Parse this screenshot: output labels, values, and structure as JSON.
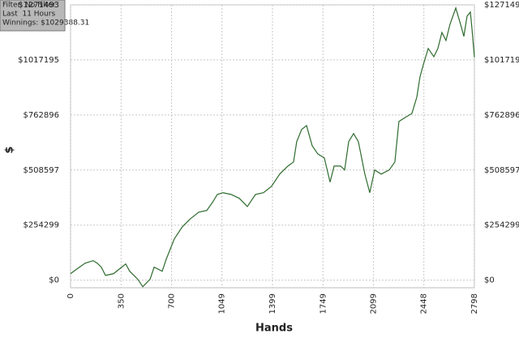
{
  "info": {
    "filter": "Filter: No Filter",
    "period": "Last  11 Hours",
    "winnings": "Winnings: $1029388.31"
  },
  "chart_data": {
    "type": "line",
    "x_label": "Hands",
    "y_label": "$",
    "xlim": [
      0,
      2798
    ],
    "xticks": [
      0,
      350,
      700,
      1049,
      1399,
      1749,
      2099,
      2448,
      2798
    ],
    "ylim": [
      -35000,
      1271493
    ],
    "yticks": [
      {
        "value": 0,
        "label": "$0"
      },
      {
        "value": 254299,
        "label": "$254299"
      },
      {
        "value": 508597,
        "label": "$508597"
      },
      {
        "value": 762896,
        "label": "$762896"
      },
      {
        "value": 1017195,
        "label": "$1017195"
      },
      {
        "value": 1271493,
        "label": "$1271493"
      }
    ],
    "grid": true,
    "series": [
      {
        "color": "#2e6b2e",
        "x": [
          0,
          45,
          101,
          157,
          185,
          213,
          242,
          298,
          354,
          382,
          410,
          466,
          500,
          551,
          579,
          635,
          663,
          719,
          775,
          831,
          888,
          944,
          983,
          1017,
          1056,
          1112,
          1169,
          1225,
          1281,
          1337,
          1393,
          1449,
          1506,
          1545,
          1567,
          1601,
          1635,
          1674,
          1713,
          1758,
          1798,
          1826,
          1871,
          1899,
          1927,
          1961,
          1994,
          2039,
          2073,
          2107,
          2152,
          2208,
          2247,
          2275,
          2320,
          2365,
          2399,
          2421,
          2444,
          2478,
          2517,
          2545,
          2573,
          2601,
          2629,
          2669,
          2702,
          2725,
          2747,
          2770,
          2781,
          2798
        ],
        "values": [
          30000,
          52000,
          78500,
          90000,
          78500,
          60000,
          22000,
          30000,
          60000,
          75000,
          41000,
          4000,
          -30000,
          4000,
          60000,
          41000,
          97000,
          191000,
          247000,
          284000,
          314000,
          322000,
          359000,
          396000,
          404000,
          396000,
          378000,
          340000,
          396000,
          404000,
          434000,
          490000,
          527000,
          546000,
          640000,
          696000,
          714000,
          621000,
          583000,
          565000,
          453000,
          527000,
          527000,
          509000,
          640000,
          677000,
          640000,
          490000,
          404000,
          509000,
          490000,
          509000,
          546000,
          733000,
          752000,
          770000,
          845000,
          939000,
          995000,
          1070000,
          1032000,
          1070000,
          1144000,
          1107000,
          1182000,
          1257000,
          1182000,
          1126000,
          1219000,
          1238000,
          1163000,
          1029388
        ]
      }
    ]
  }
}
